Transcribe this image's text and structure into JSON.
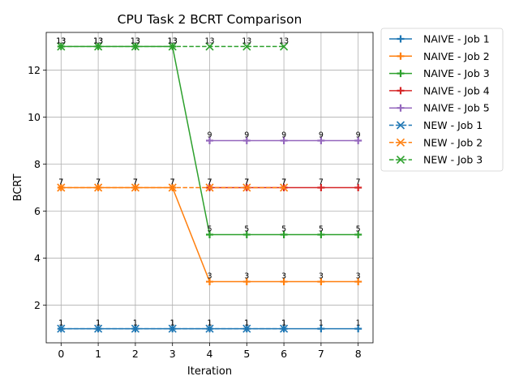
{
  "chart_data": {
    "type": "line",
    "title": "CPU Task 2 BCRT Comparison",
    "xlabel": "Iteration",
    "ylabel": "BCRT",
    "xlim": [
      -0.4,
      8.4
    ],
    "ylim": [
      0.4,
      13.6
    ],
    "xticks": [
      0,
      1,
      2,
      3,
      4,
      5,
      6,
      7,
      8
    ],
    "yticks": [
      2,
      4,
      6,
      8,
      10,
      12
    ],
    "grid": true,
    "legend_position": "outside-right",
    "series": [
      {
        "name": "NAIVE - Job 1",
        "color": "#1f77b4",
        "style": "solid",
        "marker": "plus",
        "x": [
          0,
          1,
          2,
          3,
          4,
          5,
          6,
          7,
          8
        ],
        "values": [
          1,
          1,
          1,
          1,
          1,
          1,
          1,
          1,
          1
        ]
      },
      {
        "name": "NAIVE - Job 2",
        "color": "#ff7f0e",
        "style": "solid",
        "marker": "plus",
        "x": [
          0,
          1,
          2,
          3,
          4,
          5,
          6,
          7,
          8
        ],
        "values": [
          7,
          7,
          7,
          7,
          3,
          3,
          3,
          3,
          3
        ]
      },
      {
        "name": "NAIVE - Job 3",
        "color": "#2ca02c",
        "style": "solid",
        "marker": "plus",
        "x": [
          0,
          1,
          2,
          3,
          4,
          5,
          6,
          7,
          8
        ],
        "values": [
          13,
          13,
          13,
          13,
          5,
          5,
          5,
          5,
          5
        ]
      },
      {
        "name": "NAIVE - Job 4",
        "color": "#d62728",
        "style": "solid",
        "marker": "plus",
        "x": [
          4,
          5,
          6,
          7,
          8
        ],
        "values": [
          7,
          7,
          7,
          7,
          7
        ]
      },
      {
        "name": "NAIVE - Job 5",
        "color": "#9467bd",
        "style": "solid",
        "marker": "plus",
        "x": [
          4,
          5,
          6,
          7,
          8
        ],
        "values": [
          9,
          9,
          9,
          9,
          9
        ]
      },
      {
        "name": "NEW - Job 1",
        "color": "#1f77b4",
        "style": "dashed",
        "marker": "x",
        "x": [
          0,
          1,
          2,
          3,
          4,
          5,
          6
        ],
        "values": [
          1,
          1,
          1,
          1,
          1,
          1,
          1
        ]
      },
      {
        "name": "NEW - Job 2",
        "color": "#ff7f0e",
        "style": "dashed",
        "marker": "x",
        "x": [
          0,
          1,
          2,
          3,
          4,
          5,
          6
        ],
        "values": [
          7,
          7,
          7,
          7,
          7,
          7,
          7
        ]
      },
      {
        "name": "NEW - Job 3",
        "color": "#2ca02c",
        "style": "dashed",
        "marker": "x",
        "x": [
          0,
          1,
          2,
          3,
          4,
          5,
          6
        ],
        "values": [
          13,
          13,
          13,
          13,
          13,
          13,
          13
        ]
      }
    ]
  }
}
